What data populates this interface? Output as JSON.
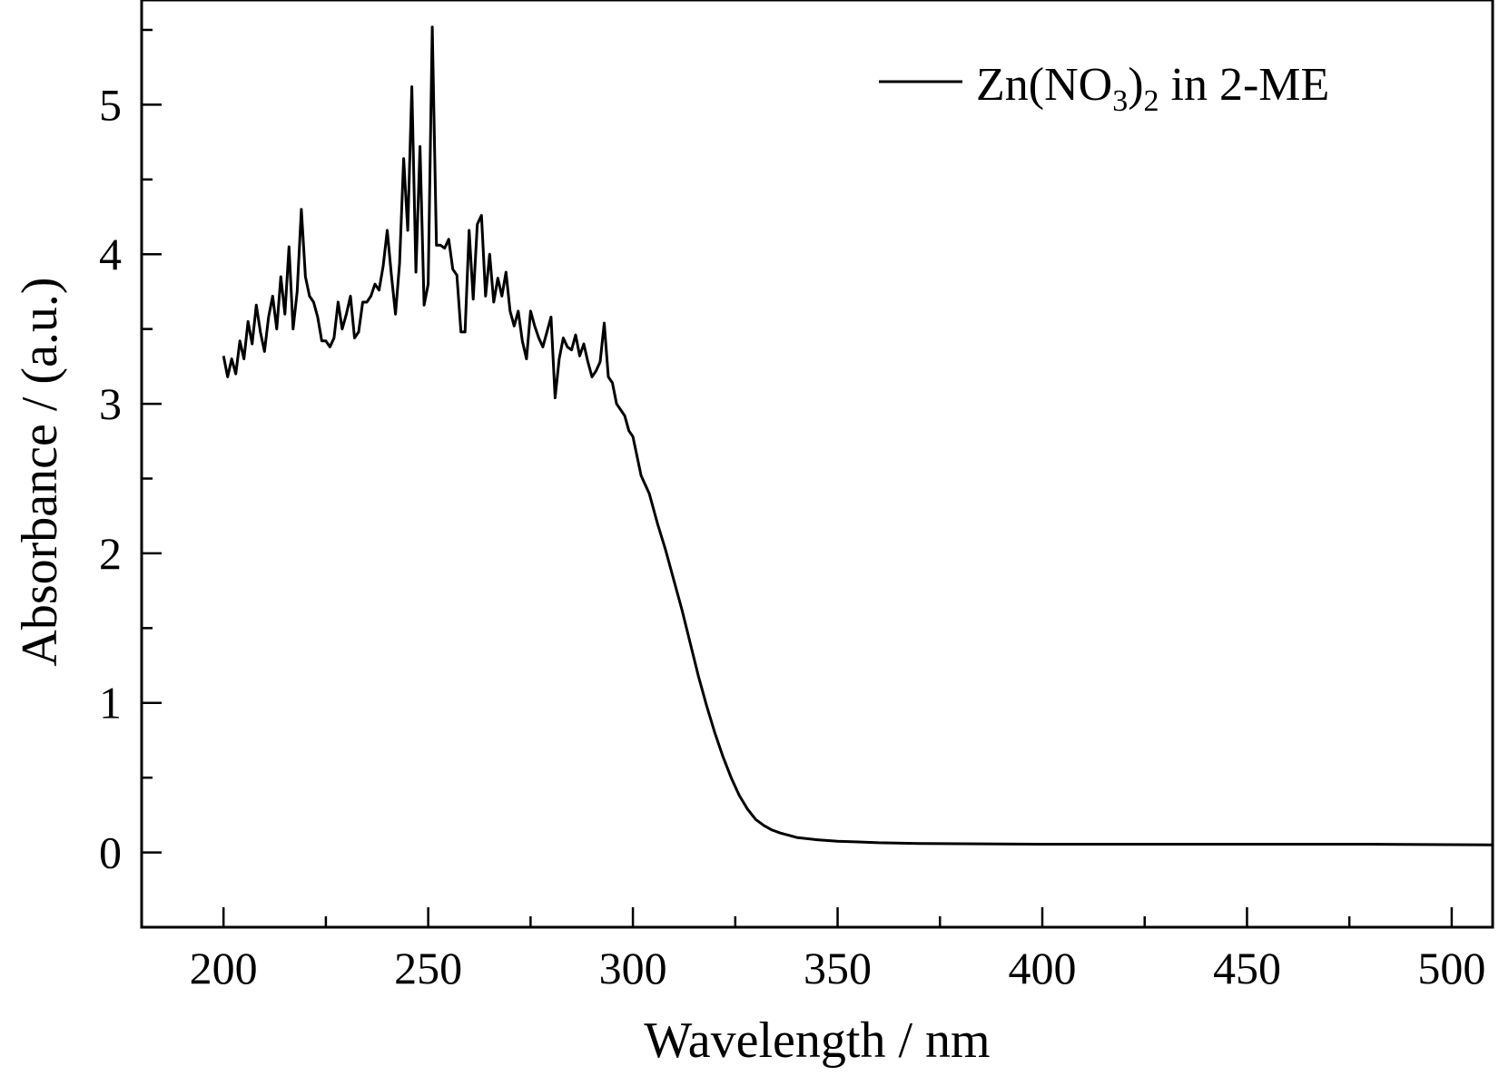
{
  "chart_data": {
    "type": "line",
    "xlabel": "Wavelength / nm",
    "ylabel": "Absorbance / (a.u.)",
    "xlim": [
      180,
      510
    ],
    "ylim": [
      -0.5,
      5.7
    ],
    "grid": false,
    "legend_position": "top-right",
    "x_ticks": [
      "200",
      "250",
      "300",
      "350",
      "400",
      "450",
      "500"
    ],
    "y_ticks": [
      "0",
      "1",
      "2",
      "3",
      "4",
      "5"
    ],
    "x_tick_values": [
      200,
      250,
      300,
      350,
      400,
      450,
      500
    ],
    "y_tick_values": [
      0,
      1,
      2,
      3,
      4,
      5
    ],
    "x_minor_step": 25,
    "y_minor_step": 0.5,
    "legend": {
      "label_main": "Zn(NO",
      "label_sub1": "3",
      "label_mid": ")",
      "label_sub2": "2",
      "label_tail": " in 2-ME"
    },
    "series": [
      {
        "name": "Zn(NO3)2 in 2-ME",
        "color": "#000000",
        "x": [
          200,
          201,
          202,
          203,
          204,
          205,
          206,
          207,
          208,
          209,
          210,
          211,
          212,
          213,
          214,
          215,
          216,
          217,
          218,
          219,
          220,
          221,
          222,
          223,
          224,
          225,
          226,
          227,
          228,
          229,
          230,
          231,
          232,
          233,
          234,
          235,
          236,
          237,
          238,
          239,
          240,
          241,
          242,
          243,
          244,
          245,
          246,
          247,
          248,
          249,
          250,
          251,
          252,
          253,
          254,
          255,
          256,
          257,
          258,
          259,
          260,
          261,
          262,
          263,
          264,
          265,
          266,
          267,
          268,
          269,
          270,
          271,
          272,
          273,
          274,
          275,
          276,
          277,
          278,
          279,
          280,
          281,
          282,
          283,
          284,
          285,
          286,
          287,
          288,
          289,
          290,
          291,
          292,
          293,
          294,
          295,
          296,
          297,
          298,
          299,
          300,
          302,
          304,
          306,
          308,
          310,
          312,
          314,
          316,
          318,
          320,
          322,
          324,
          326,
          328,
          330,
          332,
          334,
          336,
          338,
          340,
          345,
          350,
          355,
          360,
          370,
          380,
          400,
          420,
          450,
          480,
          510
        ],
        "y": [
          3.32,
          3.18,
          3.3,
          3.2,
          3.42,
          3.3,
          3.55,
          3.4,
          3.66,
          3.48,
          3.35,
          3.58,
          3.72,
          3.5,
          3.85,
          3.6,
          4.05,
          3.5,
          3.75,
          4.3,
          3.85,
          3.72,
          3.68,
          3.58,
          3.42,
          3.42,
          3.38,
          3.44,
          3.68,
          3.5,
          3.6,
          3.72,
          3.44,
          3.48,
          3.68,
          3.68,
          3.72,
          3.8,
          3.76,
          3.92,
          4.16,
          3.86,
          3.6,
          3.94,
          4.64,
          4.16,
          5.12,
          3.88,
          4.72,
          3.66,
          3.8,
          5.52,
          4.06,
          4.06,
          4.04,
          4.1,
          3.9,
          3.86,
          3.48,
          3.48,
          4.16,
          3.7,
          4.2,
          4.26,
          3.72,
          4.0,
          3.68,
          3.84,
          3.72,
          3.88,
          3.62,
          3.52,
          3.62,
          3.42,
          3.3,
          3.62,
          3.52,
          3.44,
          3.38,
          3.48,
          3.58,
          3.04,
          3.3,
          3.44,
          3.38,
          3.36,
          3.46,
          3.32,
          3.4,
          3.28,
          3.18,
          3.22,
          3.28,
          3.54,
          3.18,
          3.14,
          3.0,
          2.96,
          2.92,
          2.82,
          2.78,
          2.52,
          2.4,
          2.2,
          2.02,
          1.82,
          1.62,
          1.4,
          1.18,
          0.98,
          0.8,
          0.64,
          0.5,
          0.38,
          0.29,
          0.22,
          0.18,
          0.15,
          0.13,
          0.115,
          0.1,
          0.085,
          0.075,
          0.07,
          0.065,
          0.06,
          0.058,
          0.055,
          0.055,
          0.055,
          0.055,
          0.05
        ]
      }
    ]
  }
}
